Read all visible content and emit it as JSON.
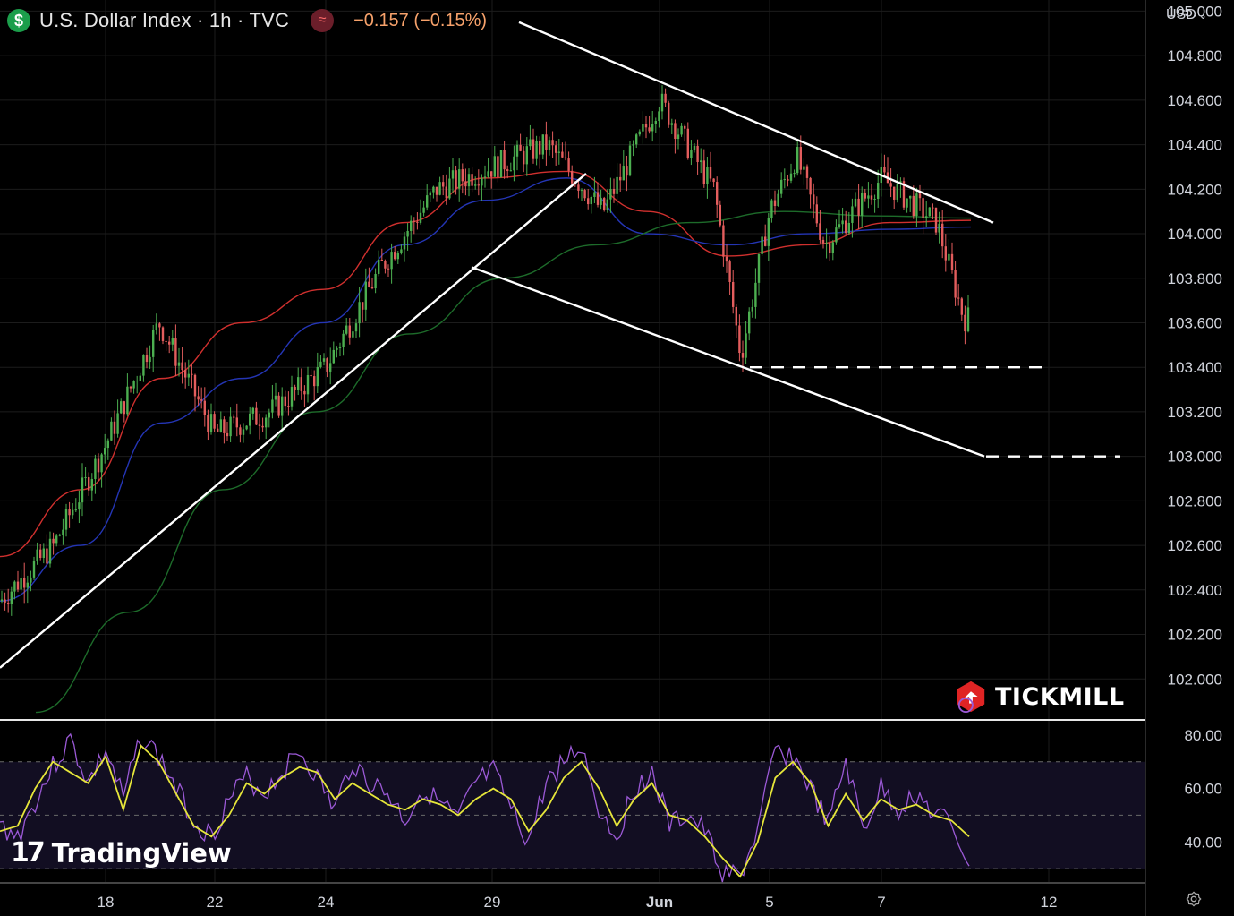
{
  "header": {
    "symbol_icon": "dollar-sign-icon",
    "title": "U.S. Dollar Index · 1h · TVC",
    "indicator_icon": "wave-icon",
    "change": "−0.157 (−0.15%)",
    "currency": "USD",
    "accent_change": "#f7a26b"
  },
  "branding": {
    "tickmill": "TICKMILL",
    "tradingview": "TradingView"
  },
  "chart_data": [
    {
      "type": "candlestick",
      "title": "U.S. Dollar Index · 1h · TVC",
      "y_ticks": [
        "102.000",
        "102.200",
        "102.400",
        "102.600",
        "102.800",
        "103.000",
        "103.200",
        "103.400",
        "103.600",
        "103.800",
        "104.000",
        "104.200",
        "104.400",
        "104.600",
        "104.800",
        "105.000"
      ],
      "x_ticks": [
        "18",
        "22",
        "24",
        "29",
        "Jun",
        "5",
        "7",
        "12"
      ],
      "ylim": [
        101.82,
        105.05
      ],
      "grid": true,
      "price_path": {
        "x": [
          "May 16",
          "May 17",
          "May 18",
          "May 19",
          "May 22",
          "May 23",
          "May 24",
          "May 25",
          "May 26",
          "May 29",
          "May 30",
          "May 31",
          "Jun 1",
          "Jun 2",
          "Jun 2",
          "Jun 5",
          "Jun 5",
          "Jun 6",
          "Jun 7",
          "Jun 8",
          "Jun 8"
        ],
        "y": [
          102.35,
          102.6,
          103.05,
          103.6,
          103.1,
          103.2,
          103.4,
          103.85,
          104.2,
          104.3,
          104.4,
          104.1,
          104.6,
          104.2,
          103.45,
          104.1,
          104.35,
          103.95,
          104.25,
          104.05,
          103.62
        ]
      },
      "moving_averages": [
        {
          "color": "#d0302e",
          "y": [
            102.55,
            102.85,
            103.35,
            103.6,
            103.75,
            104.05,
            104.25,
            104.28,
            104.1,
            103.9,
            103.95,
            104.05,
            104.06
          ]
        },
        {
          "color": "#2435b5",
          "y": [
            102.35,
            102.6,
            103.15,
            103.35,
            103.6,
            103.95,
            104.15,
            104.25,
            104.0,
            103.95,
            104.0,
            104.02,
            104.03
          ]
        },
        {
          "color": "#1d6b2a",
          "y": [
            101.85,
            102.3,
            102.85,
            103.2,
            103.55,
            103.8,
            103.95,
            104.05,
            104.1,
            104.08,
            104.07
          ]
        }
      ],
      "trendlines": [
        {
          "name": "",
          "from": [
            "May 16",
            102.05
          ],
          "to": [
            "May 30",
            104.27
          ]
        },
        {
          "name": "",
          "from": [
            "May 29",
            103.85
          ],
          "to": [
            "Jun 8",
            103.0
          ]
        },
        {
          "name": "",
          "from": [
            "May 31",
            104.95
          ],
          "to": [
            "Jun 9",
            104.05
          ]
        }
      ],
      "support_levels": [
        103.4,
        103.0
      ]
    },
    {
      "type": "line",
      "y_ticks": [
        "40.00",
        "60.00",
        "80.00"
      ],
      "ylim": [
        25,
        85
      ],
      "bands": [
        30,
        50,
        70
      ],
      "series": [
        {
          "color": "#9b59d6",
          "values": [
            46,
            42,
            55,
            68,
            78,
            62,
            74,
            56,
            80,
            72,
            60,
            48,
            42,
            56,
            64,
            58,
            66,
            74,
            64,
            52,
            70,
            62,
            58,
            48,
            60,
            54,
            48,
            62,
            66,
            52,
            40,
            62,
            70,
            76,
            52,
            42,
            60,
            66,
            46,
            50,
            44,
            28,
            27,
            44,
            74,
            72,
            60,
            46,
            70,
            44,
            60,
            52,
            58,
            50,
            47,
            31
          ]
        },
        {
          "color": "#e6e63a",
          "values": [
            44,
            46,
            60,
            70,
            66,
            62,
            72,
            52,
            76,
            70,
            58,
            46,
            42,
            50,
            62,
            58,
            64,
            68,
            66,
            56,
            62,
            58,
            54,
            52,
            56,
            54,
            50,
            56,
            60,
            56,
            44,
            52,
            64,
            70,
            60,
            46,
            56,
            62,
            50,
            48,
            42,
            34,
            27,
            40,
            64,
            70,
            62,
            46,
            58,
            48,
            56,
            52,
            54,
            50,
            48,
            42
          ]
        }
      ]
    }
  ]
}
